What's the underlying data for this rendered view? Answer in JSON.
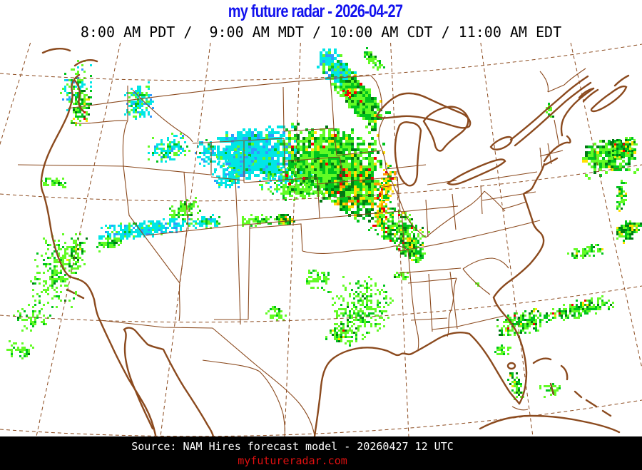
{
  "theme": {
    "title-color": "#1212ee",
    "map-line": "#8b4a1e",
    "bar-color": "#000000",
    "source-color": "#ffffff",
    "website-color": "#e01010"
  },
  "header": {
    "title": "my future radar - 2026-04-27",
    "subtitle": "8:00 AM PDT /  9:00 AM MDT / 10:00 AM CDT / 11:00 AM EDT"
  },
  "footer": {
    "source": "Source: NAM Hires forecast model - 20260427 12 UTC",
    "website": "myfutureradar.com"
  },
  "map": {
    "background": "#ffffff",
    "region": "Continental United States",
    "model": "NAM Hires",
    "valid_utc": "20260427 12 UTC"
  },
  "radar_colors": {
    "light_cyan_snow": "#00e6e6",
    "blue_heavy_snow": "#2e9bff",
    "light_green": "#62fb25",
    "green": "#00c41d",
    "dark_green": "#007a12",
    "yellow": "#ffe100",
    "orange": "#ff9a00",
    "red": "#f30000"
  },
  "precip": {
    "palettes": {
      "snow": [
        [
          "#00e6e6",
          0.78
        ],
        [
          "#2e9bff",
          0.12
        ],
        [
          "#62fb25",
          0.07
        ],
        [
          "#00c41d",
          0.03
        ]
      ],
      "snowMix": [
        [
          "#00e6e6",
          0.55
        ],
        [
          "#62fb25",
          0.25
        ],
        [
          "#00c41d",
          0.12
        ],
        [
          "#2e9bff",
          0.08
        ]
      ],
      "mixed": [
        [
          "#00e6e6",
          0.4
        ],
        [
          "#62fb25",
          0.35
        ],
        [
          "#00c41d",
          0.18
        ],
        [
          "#2e9bff",
          0.07
        ]
      ],
      "lightRain": [
        [
          "#62fb25",
          0.74
        ],
        [
          "#00c41d",
          0.23
        ],
        [
          "#007a12",
          0.03
        ]
      ],
      "rain": [
        [
          "#62fb25",
          0.48
        ],
        [
          "#00c41d",
          0.33
        ],
        [
          "#007a12",
          0.13
        ],
        [
          "#ffe100",
          0.04
        ],
        [
          "#f30000",
          0.02
        ]
      ],
      "heavyRain": [
        [
          "#00c41d",
          0.3
        ],
        [
          "#62fb25",
          0.22
        ],
        [
          "#007a12",
          0.26
        ],
        [
          "#ffe100",
          0.14
        ],
        [
          "#ff9a00",
          0.05
        ],
        [
          "#f30000",
          0.03
        ]
      ],
      "yellowCore": [
        [
          "#ffe100",
          0.45
        ],
        [
          "#ff9a00",
          0.12
        ],
        [
          "#f30000",
          0.1
        ],
        [
          "#00c41d",
          0.33
        ]
      ],
      "redSpeck": [
        [
          "#f30000",
          0.7
        ],
        [
          "#ffe100",
          0.3
        ]
      ]
    },
    "regions": [
      [
        105,
        118,
        22,
        40,
        10,
        90,
        3,
        "mixed"
      ],
      [
        112,
        150,
        15,
        32,
        15,
        110,
        3,
        "rain"
      ],
      [
        193,
        140,
        24,
        28,
        0,
        170,
        3,
        "snowMix"
      ],
      [
        237,
        207,
        34,
        20,
        -12,
        150,
        3,
        "snowMix"
      ],
      [
        290,
        213,
        18,
        18,
        0,
        80,
        3,
        "snow"
      ],
      [
        75,
        255,
        22,
        8,
        0,
        40,
        3,
        "lightRain"
      ],
      [
        358,
        213,
        60,
        38,
        -6,
        900,
        4,
        "snow"
      ],
      [
        330,
        222,
        28,
        20,
        0,
        150,
        3,
        "snow"
      ],
      [
        316,
        250,
        22,
        14,
        0,
        80,
        3,
        "snow"
      ],
      [
        405,
        250,
        48,
        20,
        -14,
        200,
        3,
        "mixed"
      ],
      [
        425,
        262,
        40,
        16,
        -12,
        150,
        3,
        "lightRain"
      ],
      [
        472,
        100,
        40,
        18,
        52,
        300,
        4,
        "snowMix"
      ],
      [
        505,
        140,
        46,
        20,
        50,
        400,
        4,
        "rain"
      ],
      [
        520,
        82,
        22,
        8,
        45,
        60,
        3,
        "lightRain"
      ],
      [
        487,
        128,
        7,
        10,
        50,
        12,
        3,
        "redSpeck"
      ],
      [
        462,
        225,
        72,
        52,
        10,
        1400,
        4,
        "rain"
      ],
      [
        498,
        268,
        42,
        38,
        30,
        450,
        4,
        "heavyRain"
      ],
      [
        540,
        262,
        10,
        38,
        12,
        120,
        3,
        "yellowCore"
      ],
      [
        532,
        300,
        9,
        22,
        8,
        80,
        3,
        "yellowCore"
      ],
      [
        558,
        320,
        42,
        26,
        38,
        330,
        3,
        "rain"
      ],
      [
        575,
        347,
        26,
        16,
        40,
        140,
        3,
        "rain"
      ],
      [
        573,
        338,
        13,
        9,
        0,
        70,
        3,
        "heavyRain"
      ],
      [
        198,
        320,
        72,
        13,
        -7,
        340,
        3,
        "snow"
      ],
      [
        285,
        310,
        28,
        9,
        -8,
        90,
        3,
        "snowMix"
      ],
      [
        150,
        340,
        24,
        9,
        -10,
        70,
        3,
        "lightRain"
      ],
      [
        258,
        292,
        24,
        13,
        -20,
        80,
        3,
        "lightRain"
      ],
      [
        78,
        382,
        38,
        60,
        15,
        240,
        3,
        "lightRain"
      ],
      [
        106,
        352,
        13,
        28,
        15,
        90,
        3,
        "rain"
      ],
      [
        45,
        446,
        28,
        18,
        0,
        60,
        3,
        "lightRain"
      ],
      [
        25,
        490,
        22,
        15,
        0,
        45,
        3,
        "lightRain"
      ],
      [
        398,
        307,
        13,
        9,
        0,
        80,
        3,
        "heavyRain"
      ],
      [
        360,
        308,
        28,
        8,
        -5,
        60,
        3,
        "lightRain"
      ],
      [
        385,
        438,
        16,
        12,
        0,
        35,
        3,
        "lightRain"
      ],
      [
        505,
        430,
        48,
        45,
        0,
        280,
        3,
        "lightRain"
      ],
      [
        478,
        468,
        25,
        15,
        20,
        80,
        3,
        "rain"
      ],
      [
        445,
        390,
        20,
        15,
        0,
        60,
        3,
        "lightRain"
      ],
      [
        560,
        385,
        14,
        8,
        0,
        25,
        3,
        "lightRain"
      ],
      [
        668,
        398,
        4,
        4,
        0,
        8,
        3,
        "lightRain"
      ],
      [
        730,
        452,
        38,
        18,
        -18,
        190,
        3,
        "rain"
      ],
      [
        703,
        490,
        12,
        9,
        0,
        30,
        3,
        "lightRain"
      ],
      [
        770,
        545,
        15,
        10,
        0,
        35,
        3,
        "lightRain"
      ],
      [
        722,
        540,
        9,
        24,
        -20,
        65,
        3,
        "rain"
      ],
      [
        810,
        432,
        52,
        12,
        -13,
        210,
        3,
        "rain"
      ],
      [
        820,
        352,
        28,
        9,
        -10,
        80,
        3,
        "rain"
      ],
      [
        878,
        322,
        22,
        12,
        -40,
        130,
        3,
        "heavyRain"
      ],
      [
        869,
        272,
        8,
        23,
        8,
        60,
        3,
        "rain"
      ],
      [
        852,
        218,
        40,
        27,
        -10,
        300,
        4,
        "rain"
      ],
      [
        872,
        205,
        20,
        15,
        -10,
        110,
        3,
        "heavyRain"
      ],
      [
        770,
        153,
        7,
        12,
        0,
        15,
        3,
        "lightRain"
      ]
    ]
  }
}
